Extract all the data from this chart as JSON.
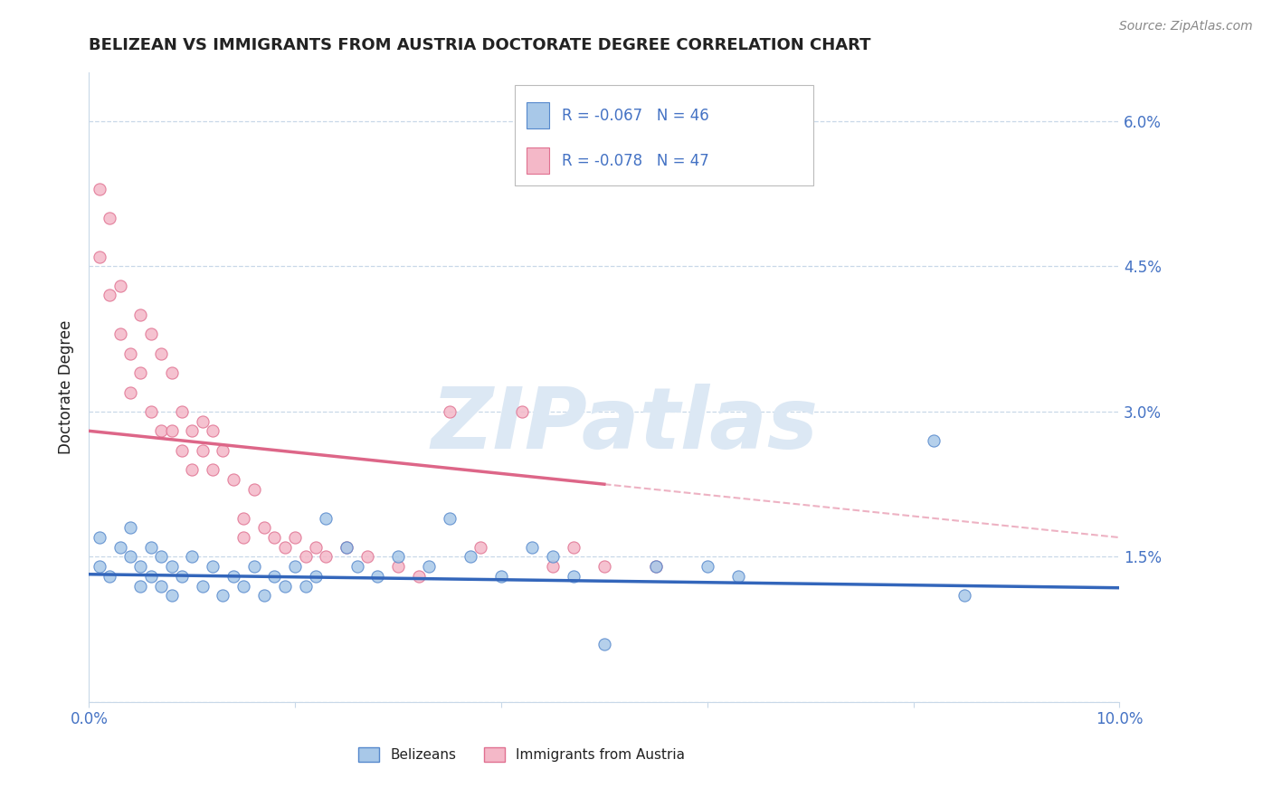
{
  "title": "BELIZEAN VS IMMIGRANTS FROM AUSTRIA DOCTORATE DEGREE CORRELATION CHART",
  "source_text": "Source: ZipAtlas.com",
  "ylabel": "Doctorate Degree",
  "xlim": [
    0.0,
    0.1
  ],
  "ylim": [
    0.0,
    0.065
  ],
  "xticks": [
    0.0,
    0.02,
    0.04,
    0.06,
    0.08,
    0.1
  ],
  "xtick_labels": [
    "0.0%",
    "",
    "",
    "",
    "",
    "10.0%"
  ],
  "yticks": [
    0.0,
    0.015,
    0.03,
    0.045,
    0.06
  ],
  "ytick_labels_right": [
    "",
    "1.5%",
    "3.0%",
    "4.5%",
    "6.0%"
  ],
  "legend_r1": "R = -0.067",
  "legend_n1": "N = 46",
  "legend_r2": "R = -0.078",
  "legend_n2": "N = 47",
  "legend_label1": "Belizeans",
  "legend_label2": "Immigrants from Austria",
  "blue_color": "#a8c8e8",
  "pink_color": "#f4b8c8",
  "blue_edge_color": "#5588cc",
  "pink_edge_color": "#e07090",
  "blue_line_color": "#3366bb",
  "pink_line_color": "#dd6688",
  "watermark": "ZIPatlas",
  "watermark_color": "#dce8f4",
  "background_color": "#ffffff",
  "grid_color": "#c8d8e8",
  "title_color": "#222222",
  "axis_label_color": "#4472c4",
  "legend_text_color": "#4472c4",
  "source_color": "#888888",
  "blue_trend_x0": 0.0,
  "blue_trend_y0": 0.0132,
  "blue_trend_x1": 0.1,
  "blue_trend_y1": 0.0118,
  "pink_trend_solid_x0": 0.0,
  "pink_trend_solid_y0": 0.028,
  "pink_trend_solid_x1": 0.05,
  "pink_trend_solid_y1": 0.0225,
  "pink_trend_dash_x0": 0.05,
  "pink_trend_dash_y0": 0.0225,
  "pink_trend_dash_x1": 0.1,
  "pink_trend_dash_y1": 0.017,
  "blue_scatter": [
    [
      0.001,
      0.014
    ],
    [
      0.001,
      0.017
    ],
    [
      0.002,
      0.013
    ],
    [
      0.003,
      0.016
    ],
    [
      0.004,
      0.015
    ],
    [
      0.004,
      0.018
    ],
    [
      0.005,
      0.012
    ],
    [
      0.005,
      0.014
    ],
    [
      0.006,
      0.016
    ],
    [
      0.006,
      0.013
    ],
    [
      0.007,
      0.015
    ],
    [
      0.007,
      0.012
    ],
    [
      0.008,
      0.014
    ],
    [
      0.008,
      0.011
    ],
    [
      0.009,
      0.013
    ],
    [
      0.01,
      0.015
    ],
    [
      0.011,
      0.012
    ],
    [
      0.012,
      0.014
    ],
    [
      0.013,
      0.011
    ],
    [
      0.014,
      0.013
    ],
    [
      0.015,
      0.012
    ],
    [
      0.016,
      0.014
    ],
    [
      0.017,
      0.011
    ],
    [
      0.018,
      0.013
    ],
    [
      0.019,
      0.012
    ],
    [
      0.02,
      0.014
    ],
    [
      0.021,
      0.012
    ],
    [
      0.022,
      0.013
    ],
    [
      0.023,
      0.019
    ],
    [
      0.025,
      0.016
    ],
    [
      0.026,
      0.014
    ],
    [
      0.028,
      0.013
    ],
    [
      0.03,
      0.015
    ],
    [
      0.033,
      0.014
    ],
    [
      0.035,
      0.019
    ],
    [
      0.037,
      0.015
    ],
    [
      0.04,
      0.013
    ],
    [
      0.043,
      0.016
    ],
    [
      0.045,
      0.015
    ],
    [
      0.047,
      0.013
    ],
    [
      0.05,
      0.006
    ],
    [
      0.055,
      0.014
    ],
    [
      0.06,
      0.014
    ],
    [
      0.063,
      0.013
    ],
    [
      0.082,
      0.027
    ],
    [
      0.085,
      0.011
    ]
  ],
  "pink_scatter": [
    [
      0.001,
      0.053
    ],
    [
      0.001,
      0.046
    ],
    [
      0.002,
      0.05
    ],
    [
      0.002,
      0.042
    ],
    [
      0.003,
      0.038
    ],
    [
      0.003,
      0.043
    ],
    [
      0.004,
      0.036
    ],
    [
      0.004,
      0.032
    ],
    [
      0.005,
      0.04
    ],
    [
      0.005,
      0.034
    ],
    [
      0.006,
      0.038
    ],
    [
      0.006,
      0.03
    ],
    [
      0.007,
      0.036
    ],
    [
      0.007,
      0.028
    ],
    [
      0.008,
      0.034
    ],
    [
      0.008,
      0.028
    ],
    [
      0.009,
      0.03
    ],
    [
      0.009,
      0.026
    ],
    [
      0.01,
      0.028
    ],
    [
      0.01,
      0.024
    ],
    [
      0.011,
      0.026
    ],
    [
      0.011,
      0.029
    ],
    [
      0.012,
      0.028
    ],
    [
      0.012,
      0.024
    ],
    [
      0.013,
      0.026
    ],
    [
      0.014,
      0.023
    ],
    [
      0.015,
      0.017
    ],
    [
      0.015,
      0.019
    ],
    [
      0.016,
      0.022
    ],
    [
      0.017,
      0.018
    ],
    [
      0.018,
      0.017
    ],
    [
      0.019,
      0.016
    ],
    [
      0.02,
      0.017
    ],
    [
      0.021,
      0.015
    ],
    [
      0.022,
      0.016
    ],
    [
      0.023,
      0.015
    ],
    [
      0.025,
      0.016
    ],
    [
      0.027,
      0.015
    ],
    [
      0.03,
      0.014
    ],
    [
      0.032,
      0.013
    ],
    [
      0.035,
      0.03
    ],
    [
      0.038,
      0.016
    ],
    [
      0.042,
      0.03
    ],
    [
      0.045,
      0.014
    ],
    [
      0.047,
      0.016
    ],
    [
      0.05,
      0.014
    ],
    [
      0.055,
      0.014
    ]
  ]
}
